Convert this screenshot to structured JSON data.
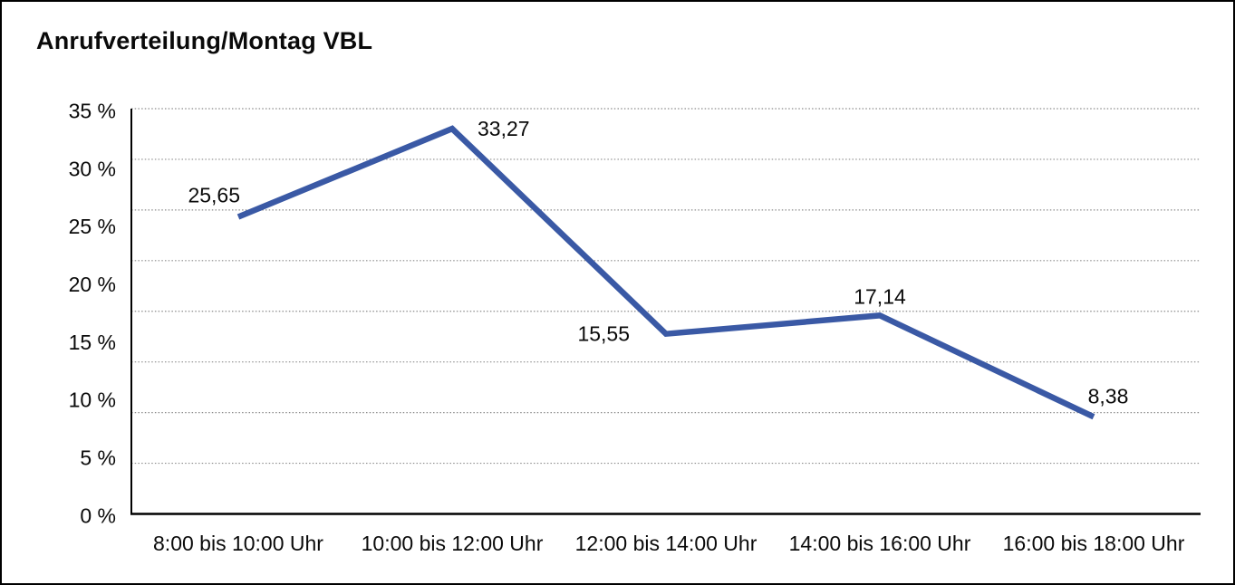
{
  "window": {
    "background": "#ffffff",
    "border_color": "#000000"
  },
  "header": {
    "title": "Anrufverteilung/Montag VBL"
  },
  "chart_data": {
    "type": "line",
    "title": "Anrufverteilung/Montag VBL",
    "categories": [
      "8:00 bis 10:00 Uhr",
      "10:00 bis 12:00 Uhr",
      "12:00 bis 14:00 Uhr",
      "14:00 bis 16:00 Uhr",
      "16:00 bis 18:00 Uhr"
    ],
    "values": [
      25.65,
      33.27,
      15.55,
      17.14,
      8.38
    ],
    "value_labels": [
      "25,65",
      "33,27",
      "15,55",
      "17,14",
      "8,38"
    ],
    "value_label_positions": [
      "above-left",
      "right",
      "left",
      "above",
      "above-right"
    ],
    "y_tick_labels": [
      "35 %",
      "30 %",
      "25 %",
      "20 %",
      "15 %",
      "10 %",
      "5 %",
      "0 %"
    ],
    "ylim": [
      0,
      35
    ],
    "xlabel": "",
    "ylabel": "",
    "legend": "none",
    "grid": {
      "horizontal_divisions": 8,
      "style": "dotted",
      "vertical": false
    },
    "colors": {
      "line": "#3a59a5",
      "grid": "#8c8c8c",
      "axis": "#000000",
      "text": "#0a0a0a"
    },
    "line_width": 6.5
  }
}
